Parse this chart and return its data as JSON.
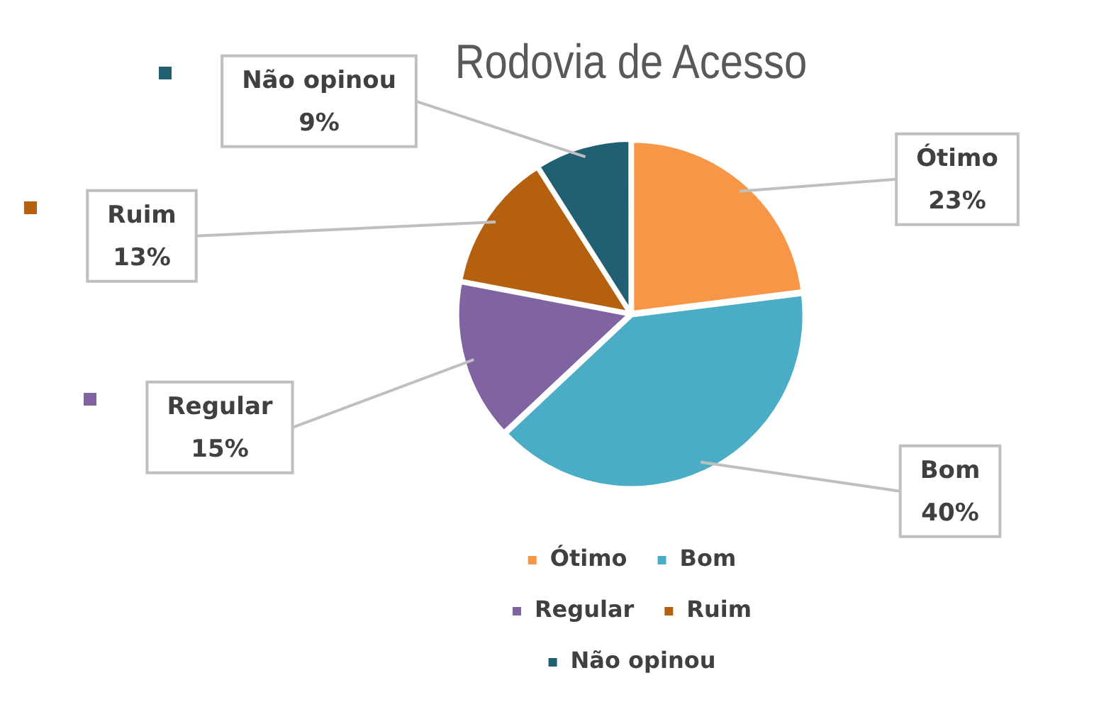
{
  "chart_data": {
    "type": "pie",
    "title": "Rodovia de Acesso",
    "categories": [
      "Ótimo",
      "Bom",
      "Regular",
      "Ruim",
      "Não opinou"
    ],
    "values": [
      23,
      40,
      15,
      13,
      9
    ],
    "value_labels": [
      "23%",
      "40%",
      "15%",
      "13%",
      "9%"
    ],
    "colors": [
      "#f79646",
      "#4bacc6",
      "#8064a2",
      "#b5600f",
      "#215f73"
    ],
    "legend": "bottom"
  }
}
